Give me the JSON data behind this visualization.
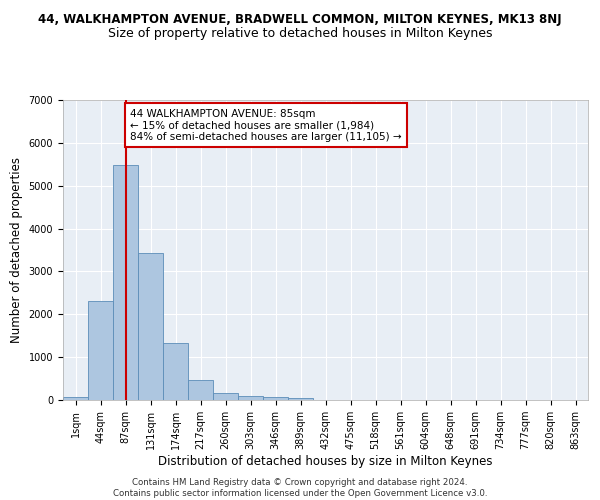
{
  "title": "44, WALKHAMPTON AVENUE, BRADWELL COMMON, MILTON KEYNES, MK13 8NJ",
  "subtitle": "Size of property relative to detached houses in Milton Keynes",
  "xlabel": "Distribution of detached houses by size in Milton Keynes",
  "ylabel": "Number of detached properties",
  "footer_line1": "Contains HM Land Registry data © Crown copyright and database right 2024.",
  "footer_line2": "Contains public sector information licensed under the Open Government Licence v3.0.",
  "annotation_title": "44 WALKHAMPTON AVENUE: 85sqm",
  "annotation_line2": "← 15% of detached houses are smaller (1,984)",
  "annotation_line3": "84% of semi-detached houses are larger (11,105) →",
  "bar_color": "#adc6e0",
  "bar_edge_color": "#5b8db8",
  "bar_highlight_color": "#cc0000",
  "categories": [
    "1sqm",
    "44sqm",
    "87sqm",
    "131sqm",
    "174sqm",
    "217sqm",
    "260sqm",
    "303sqm",
    "346sqm",
    "389sqm",
    "432sqm",
    "475sqm",
    "518sqm",
    "561sqm",
    "604sqm",
    "648sqm",
    "691sqm",
    "734sqm",
    "777sqm",
    "820sqm",
    "863sqm"
  ],
  "values": [
    80,
    2300,
    5480,
    3440,
    1330,
    470,
    155,
    100,
    65,
    40,
    0,
    0,
    0,
    0,
    0,
    0,
    0,
    0,
    0,
    0,
    0
  ],
  "vline_x": 2.0,
  "ylim": [
    0,
    7000
  ],
  "yticks": [
    0,
    1000,
    2000,
    3000,
    4000,
    5000,
    6000,
    7000
  ],
  "plot_bg_color": "#e8eef5",
  "grid_color": "#ffffff",
  "title_fontsize": 8.5,
  "subtitle_fontsize": 9.0,
  "xlabel_fontsize": 8.5,
  "ylabel_fontsize": 8.5,
  "tick_fontsize": 7.0,
  "annotation_fontsize": 7.5,
  "footer_fontsize": 6.2
}
